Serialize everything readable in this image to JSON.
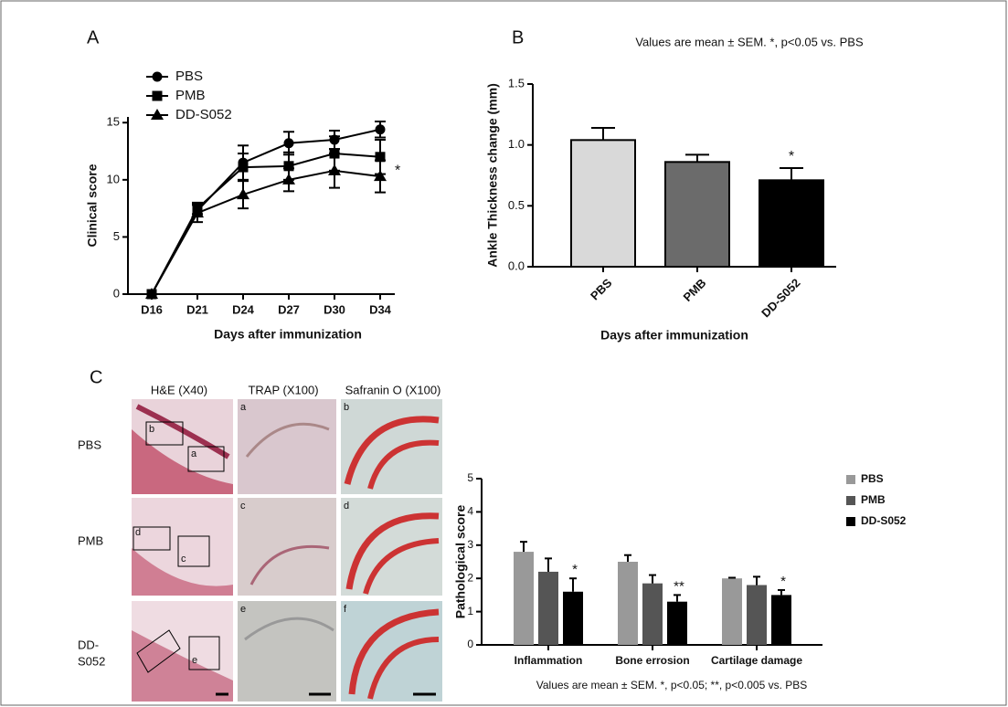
{
  "chart_data": [
    {
      "type": "line",
      "panel": "A",
      "ylabel": "Clinical score",
      "xlabel": "Days after immunization",
      "categories": [
        "D16",
        "D21",
        "D24",
        "D27",
        "D30",
        "D34"
      ],
      "ylim": [
        0,
        15.5
      ],
      "yticks": [
        0,
        5,
        10,
        15
      ],
      "error_bars": "both",
      "legend": "top-left",
      "series": [
        {
          "name": "PBS",
          "marker": "circle",
          "color": "#000000",
          "values": [
            0,
            7.3,
            11.5,
            13.2,
            13.5,
            14.4
          ],
          "errors": [
            0,
            0.5,
            1.5,
            1.0,
            0.8,
            0.7
          ]
        },
        {
          "name": "PMB",
          "marker": "square",
          "color": "#000000",
          "values": [
            0,
            7.5,
            11.1,
            11.2,
            12.3,
            12.0
          ],
          "errors": [
            0,
            0.5,
            1.2,
            1.2,
            1.5,
            1.5
          ]
        },
        {
          "name": "DD-S052",
          "marker": "triangle",
          "color": "#000000",
          "values": [
            0,
            7.1,
            8.7,
            10.0,
            10.8,
            10.3
          ],
          "errors": [
            0,
            0.8,
            1.2,
            1.0,
            1.5,
            1.4
          ],
          "significance": [
            null,
            null,
            null,
            null,
            null,
            "*"
          ]
        }
      ]
    },
    {
      "type": "bar",
      "panel": "B",
      "title": "Values are mean ± SEM. *, p<0.05 vs. PBS",
      "ylabel": "Ankle Thickness change (mm)",
      "xlabel": "Days after immunization",
      "categories": [
        "PBS",
        "PMB",
        "DD-S052"
      ],
      "values": [
        1.04,
        0.86,
        0.71
      ],
      "errors": [
        0.1,
        0.06,
        0.1
      ],
      "colors": [
        "#d9d9d9",
        "#6b6b6b",
        "#000000"
      ],
      "significance": [
        null,
        null,
        "*"
      ],
      "error_bars": "up",
      "ylim": [
        0,
        1.5
      ],
      "yticks": [
        {
          "value": 0,
          "label": "0.0"
        },
        0.5,
        {
          "value": 1,
          "label": "1.0"
        },
        1.5
      ]
    },
    {
      "type": "grouped-bar",
      "ylabel": "Pathological score",
      "footnote": "Values are mean ± SEM. *, p<0.05; **, p<0.005 vs. PBS",
      "categories": [
        "Inflammation",
        "Bone errosion",
        "Cartilage damage"
      ],
      "ylim": [
        0,
        5
      ],
      "yticks": [
        0,
        1,
        2,
        3,
        4,
        5
      ],
      "error_bars": "up",
      "legend": "top-right",
      "series": [
        {
          "name": "PBS",
          "color": "#999999",
          "values": [
            2.8,
            2.5,
            2.0
          ],
          "errors": [
            0.3,
            0.2,
            0.02
          ]
        },
        {
          "name": "PMB",
          "color": "#555555",
          "values": [
            2.2,
            1.85,
            1.8
          ],
          "errors": [
            0.4,
            0.25,
            0.25
          ]
        },
        {
          "name": "DD-S052",
          "color": "#000000",
          "values": [
            1.6,
            1.3,
            1.5
          ],
          "errors": [
            0.4,
            0.2,
            0.15
          ],
          "significance": [
            "*",
            "**",
            "*"
          ]
        }
      ]
    }
  ],
  "histology": {
    "panel": "C",
    "columns": [
      "H&E (X40)",
      "TRAP (X100)",
      "Safranin O (X100)"
    ],
    "rows": [
      [
        "PBS"
      ],
      [
        "PMB"
      ],
      [
        "DD-",
        "S052"
      ]
    ],
    "inset_labels": [
      [
        "b",
        "a",
        "a",
        "b"
      ],
      [
        "d",
        "c",
        "c",
        "d"
      ],
      [
        "e",
        "e",
        "f"
      ]
    ]
  }
}
